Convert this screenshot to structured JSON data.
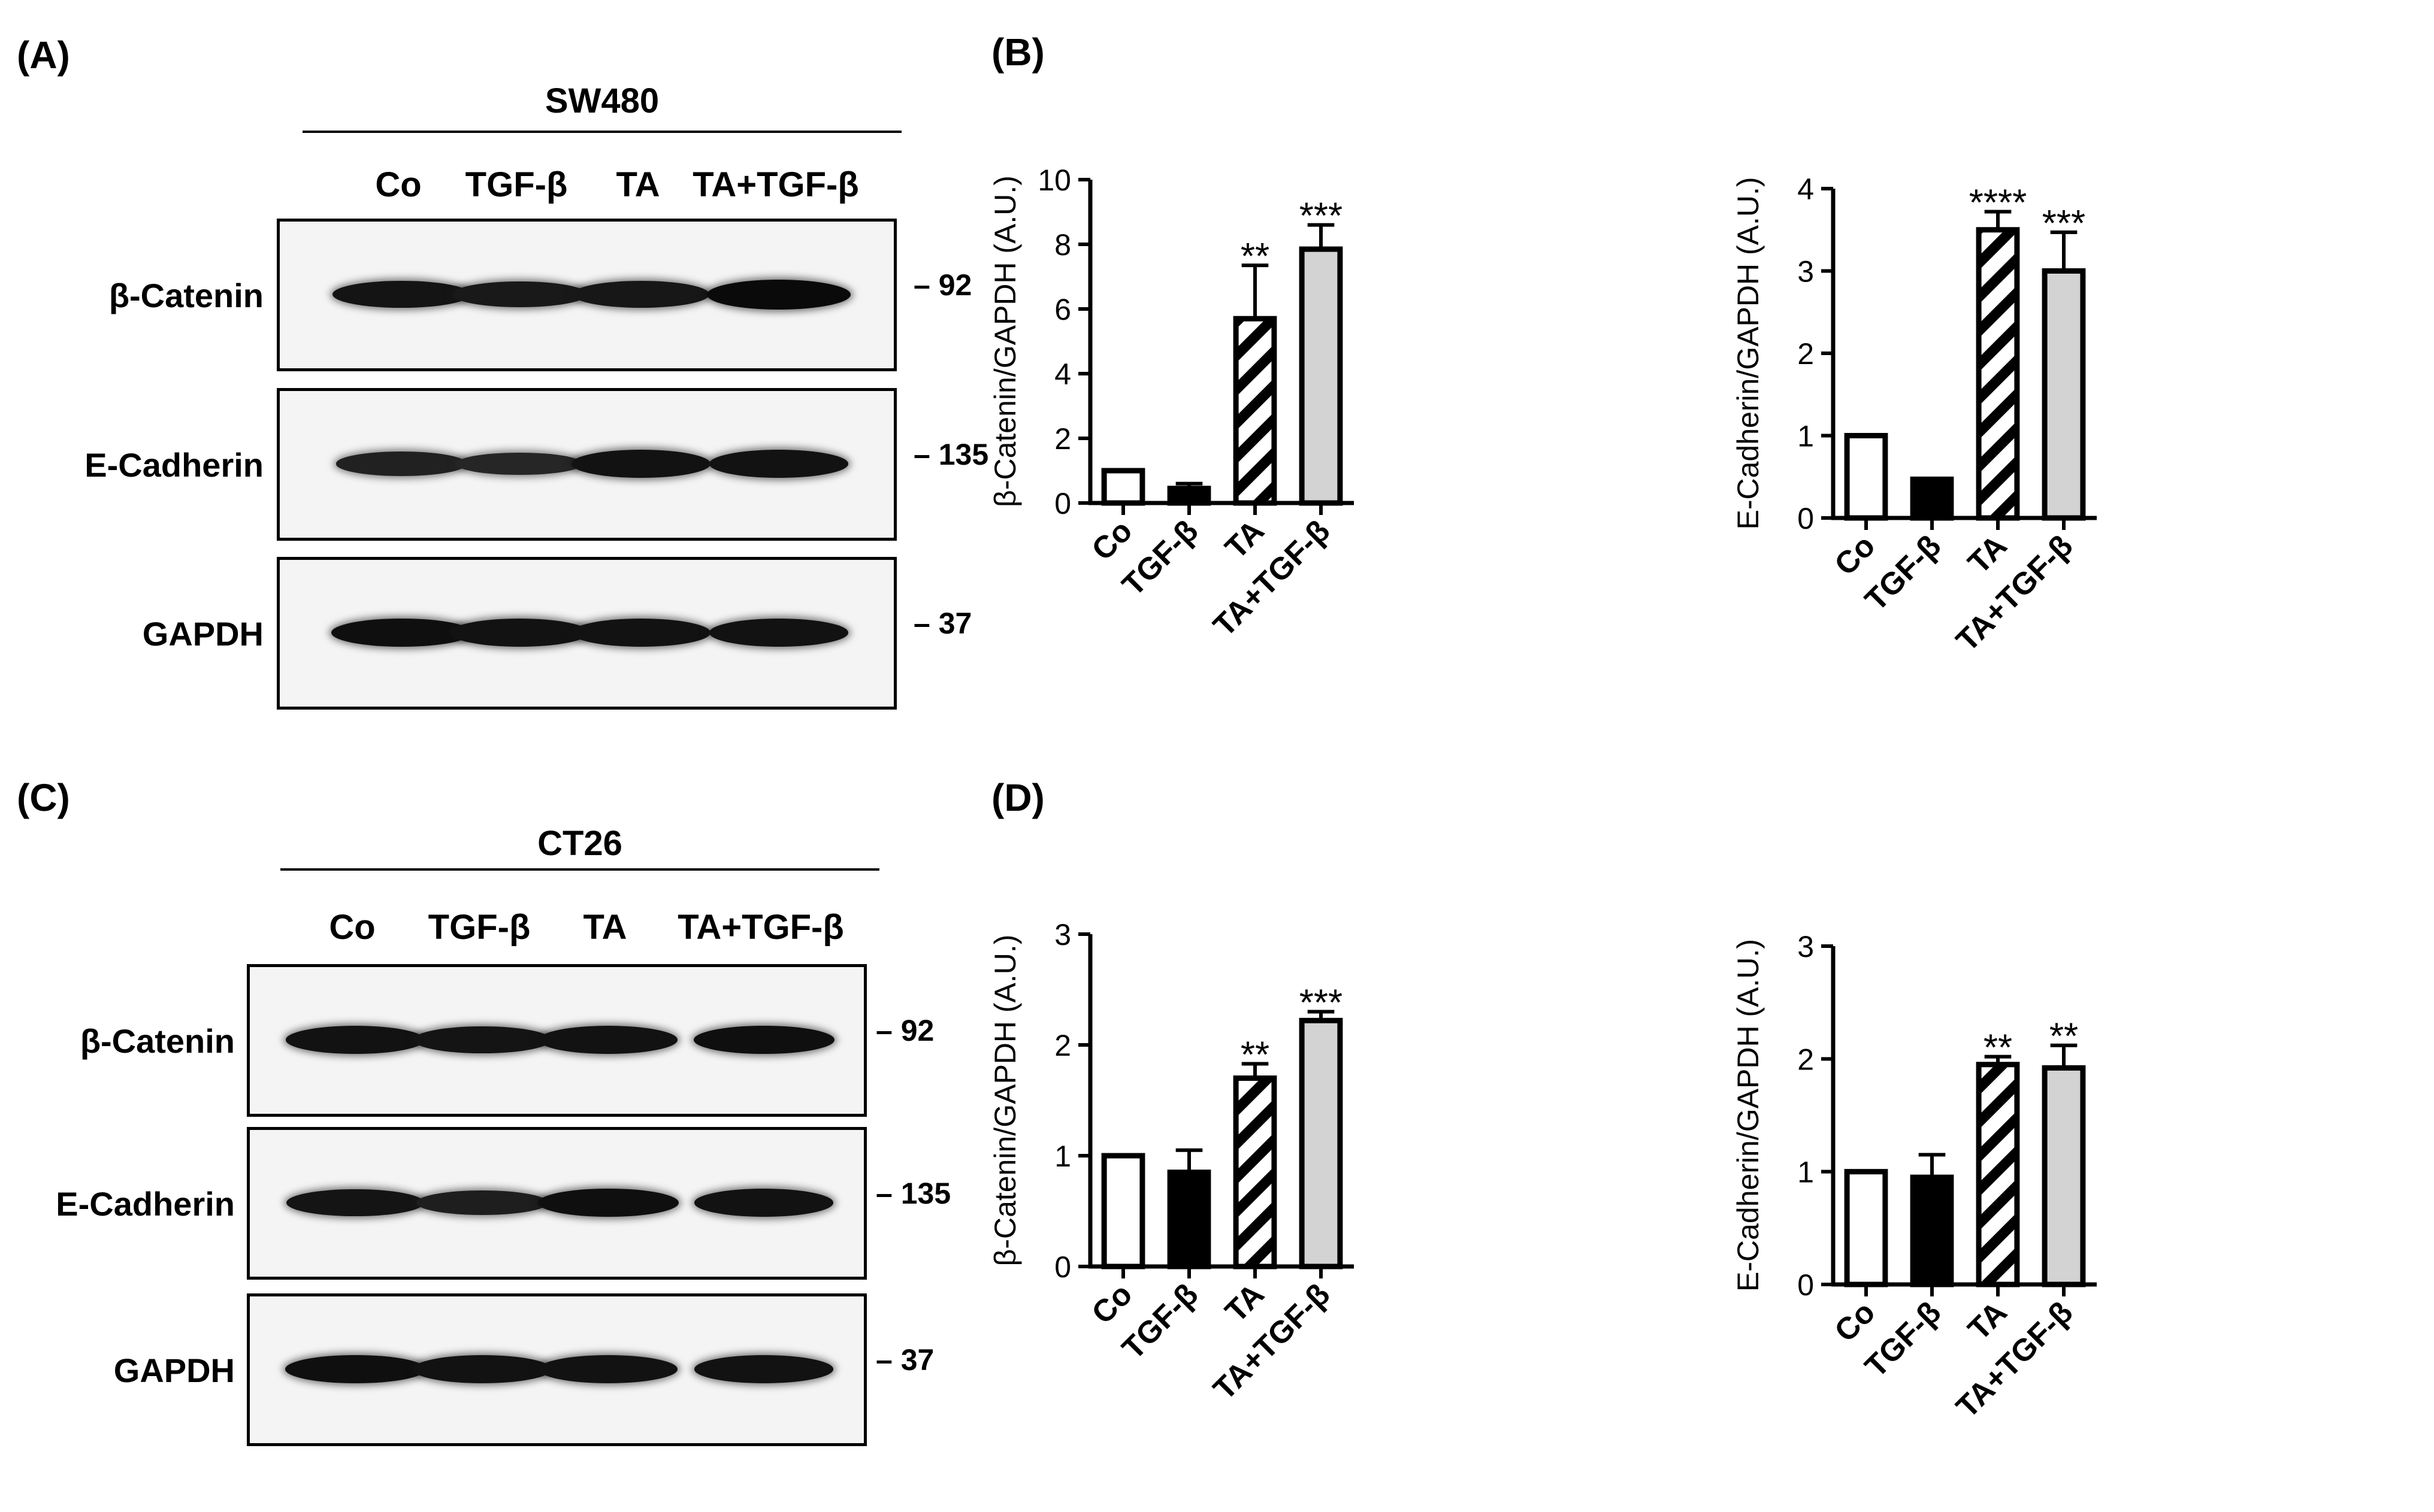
{
  "panels": {
    "A": "(A)",
    "B": "(B)",
    "C": "(C)",
    "D": "(D)"
  },
  "blots": [
    {
      "cell_line": "SW480",
      "lanes": [
        "Co",
        "TGF-β",
        "TA",
        "TA+TGF-β"
      ],
      "rows": [
        {
          "protein": "β-Catenin",
          "mw": "92",
          "intensities": [
            0.8,
            0.7,
            0.75,
            1.0
          ]
        },
        {
          "protein": "E-Cadherin",
          "mw": "135",
          "intensities": [
            0.55,
            0.45,
            0.85,
            0.85
          ]
        },
        {
          "protein": "GAPDH",
          "mw": "37",
          "intensities": [
            0.9,
            0.85,
            0.85,
            0.85
          ]
        }
      ]
    },
    {
      "cell_line": "CT26",
      "lanes": [
        "Co",
        "TGF-β",
        "TA",
        "TA+TGF-β"
      ],
      "rows": [
        {
          "protein": "β-Catenin",
          "mw": "92",
          "intensities": [
            0.85,
            0.8,
            0.85,
            0.9
          ]
        },
        {
          "protein": "E-Cadherin",
          "mw": "135",
          "intensities": [
            0.8,
            0.6,
            0.9,
            0.85
          ]
        },
        {
          "protein": "GAPDH",
          "mw": "37",
          "intensities": [
            0.9,
            0.85,
            0.85,
            0.85
          ]
        }
      ]
    }
  ],
  "chart_data": [
    {
      "type": "bar",
      "panel": "B",
      "categories": [
        "Co",
        "TGF-β",
        "TA",
        "TA+TGF-β"
      ],
      "values": [
        1.0,
        0.45,
        5.7,
        7.85
      ],
      "errors": [
        0,
        0.15,
        1.65,
        0.75
      ],
      "significance": [
        "",
        "",
        "**",
        "***"
      ],
      "ylabel": "β-Catenin/GAPDH (A.U.)",
      "ylim": [
        0,
        10
      ],
      "yticks": [
        0,
        2,
        4,
        6,
        8,
        10
      ],
      "fills": [
        "white",
        "black",
        "hatched",
        "light-gray"
      ]
    },
    {
      "type": "bar",
      "panel": "B",
      "categories": [
        "Co",
        "TGF-β",
        "TA",
        "TA+TGF-β"
      ],
      "values": [
        1.0,
        0.47,
        3.5,
        3.0
      ],
      "errors": [
        0,
        0,
        0.22,
        0.47
      ],
      "significance": [
        "",
        "",
        "****",
        "***"
      ],
      "ylabel": "E-Cadherin/GAPDH (A.U.)",
      "ylim": [
        0,
        4
      ],
      "yticks": [
        0,
        1,
        2,
        3,
        4
      ],
      "fills": [
        "white",
        "black",
        "hatched",
        "light-gray"
      ]
    },
    {
      "type": "bar",
      "panel": "D",
      "categories": [
        "Co",
        "TGF-β",
        "TA",
        "TA+TGF-β"
      ],
      "values": [
        1.0,
        0.85,
        1.7,
        2.22
      ],
      "errors": [
        0,
        0.2,
        0.13,
        0.08
      ],
      "significance": [
        "",
        "",
        "**",
        "***"
      ],
      "ylabel": "β-Catenin/GAPDH (A.U.)",
      "ylim": [
        0,
        3
      ],
      "yticks": [
        0,
        1,
        2,
        3
      ],
      "fills": [
        "white",
        "black",
        "hatched",
        "light-gray"
      ]
    },
    {
      "type": "bar",
      "panel": "D",
      "categories": [
        "Co",
        "TGF-β",
        "TA",
        "TA+TGF-β"
      ],
      "values": [
        1.0,
        0.95,
        1.95,
        1.92
      ],
      "errors": [
        0,
        0.2,
        0.07,
        0.2
      ],
      "significance": [
        "",
        "",
        "**",
        "**"
      ],
      "ylabel": "E-Cadherin/GAPDH (A.U.)",
      "ylim": [
        0,
        3
      ],
      "yticks": [
        0,
        1,
        2,
        3
      ],
      "fills": [
        "white",
        "black",
        "hatched",
        "light-gray"
      ]
    }
  ]
}
